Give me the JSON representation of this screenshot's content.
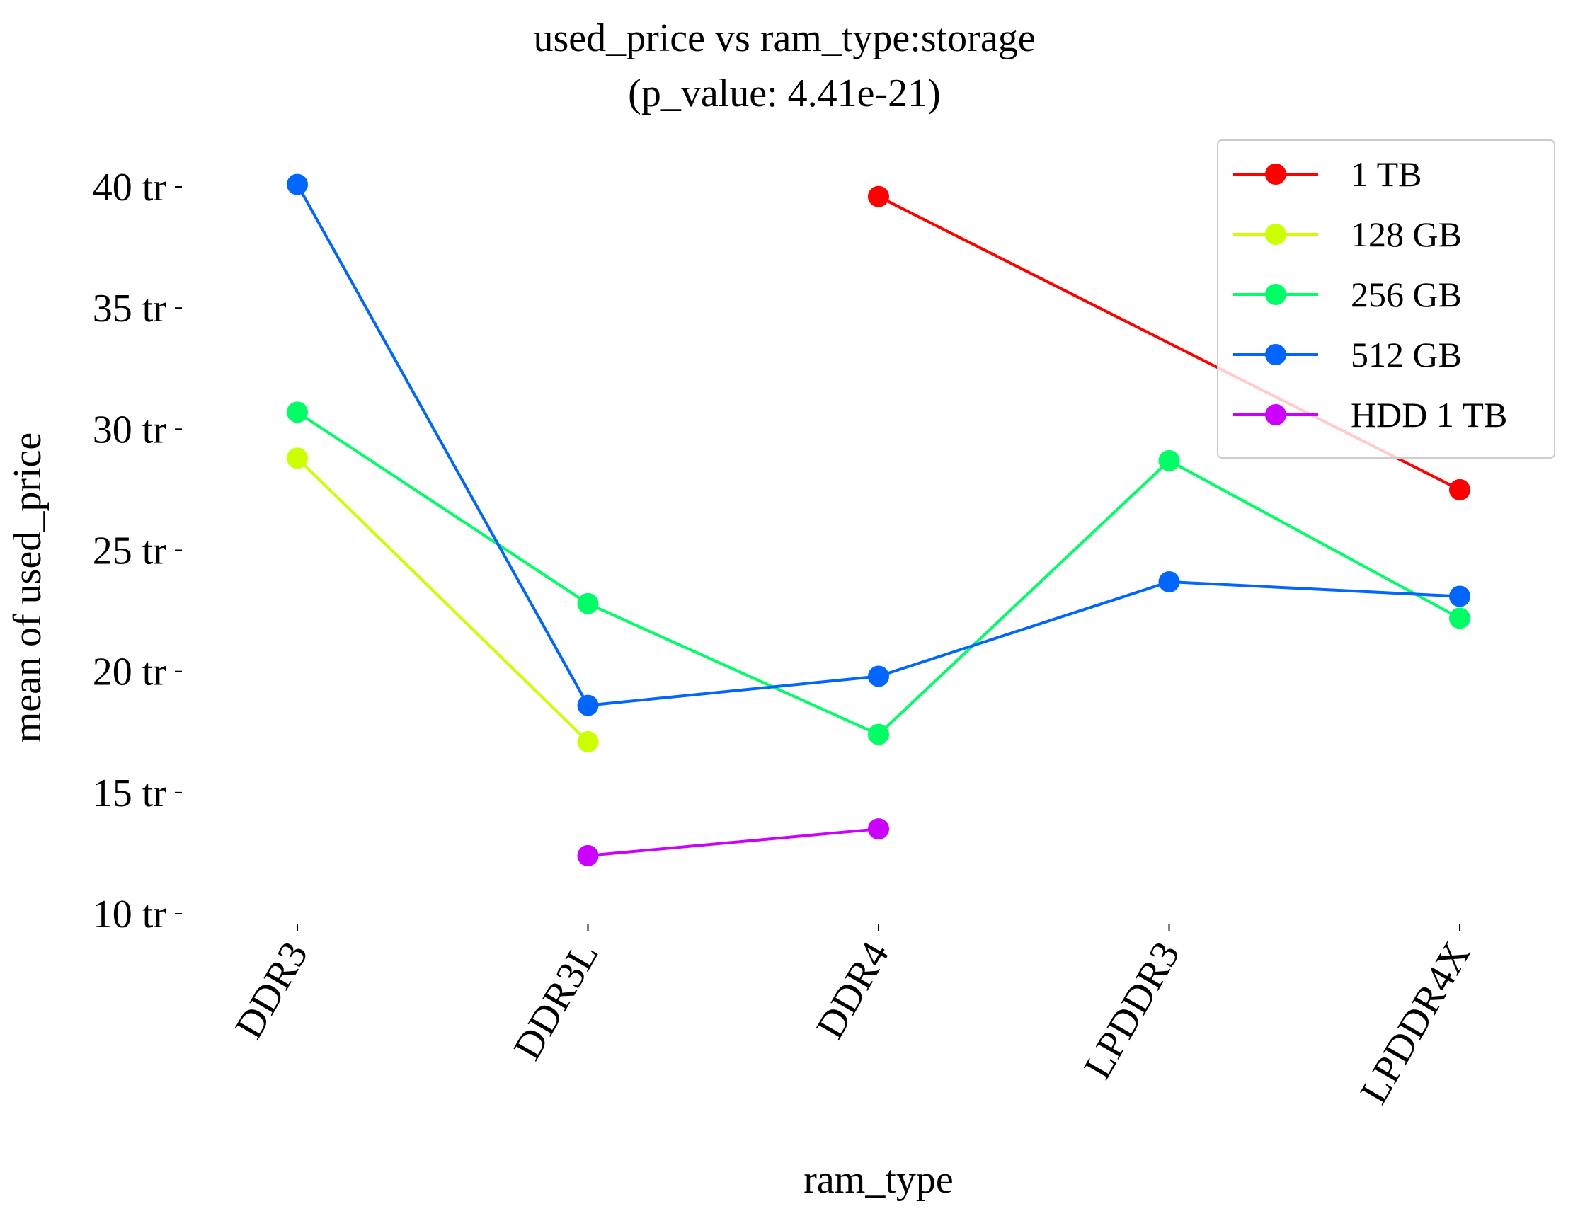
{
  "chart_data": {
    "type": "line",
    "title_lines": [
      "used_price vs ram_type:storage",
      "(p_value: 4.41e-21)"
    ],
    "xlabel": "ram_type",
    "ylabel": "mean of used_price",
    "categories": [
      "DDR3",
      "DDR3L",
      "DDR4",
      "LPDDR3",
      "LPDDR4X"
    ],
    "y_ticks": [
      {
        "value": 10,
        "label": "10 tr"
      },
      {
        "value": 15,
        "label": "15 tr"
      },
      {
        "value": 20,
        "label": "20 tr"
      },
      {
        "value": 25,
        "label": "25 tr"
      },
      {
        "value": 30,
        "label": "30 tr"
      },
      {
        "value": 35,
        "label": "35 tr"
      },
      {
        "value": 40,
        "label": "40 tr"
      }
    ],
    "ylim": [
      10,
      40
    ],
    "grid": false,
    "legend_position": "top-right",
    "series": [
      {
        "name": "1 TB",
        "color": "#ff0000",
        "values": [
          null,
          null,
          39.6,
          null,
          27.5
        ]
      },
      {
        "name": "128 GB",
        "color": "#ccff00",
        "values": [
          28.8,
          17.1,
          null,
          null,
          null
        ]
      },
      {
        "name": "256 GB",
        "color": "#00ff66",
        "values": [
          30.7,
          22.8,
          17.4,
          28.7,
          22.2
        ]
      },
      {
        "name": "512 GB",
        "color": "#0066ff",
        "values": [
          40.1,
          18.6,
          19.8,
          23.7,
          23.1
        ]
      },
      {
        "name": "HDD 1 TB",
        "color": "#cc00ff",
        "values": [
          null,
          12.4,
          13.5,
          null,
          null
        ]
      }
    ]
  }
}
